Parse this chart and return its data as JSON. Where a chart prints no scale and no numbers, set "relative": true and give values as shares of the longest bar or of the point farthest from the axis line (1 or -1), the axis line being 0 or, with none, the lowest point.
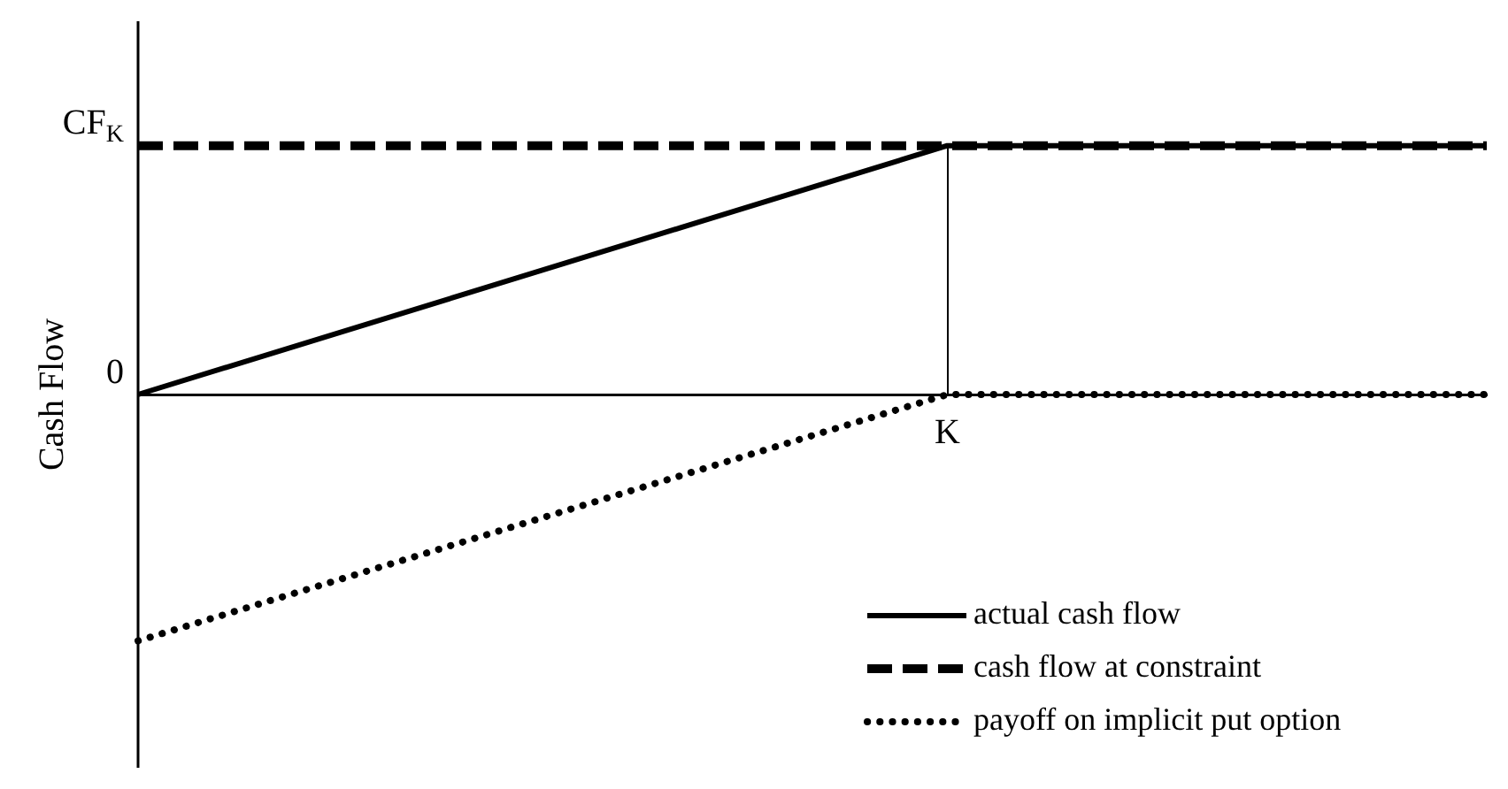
{
  "chart_data": {
    "type": "line",
    "ylabel": "Cash Flow",
    "categories": [
      null,
      null,
      null,
      null,
      null,
      null
    ],
    "relative": true,
    "annotations": [
      "0",
      "CF$_{K}$",
      "K"
    ],
    "grid": false,
    "legend": "bottom right",
    "marker": "none",
    "series": [
      {
        "name": "actual cash flow",
        "color": "#000000",
        "line_style": "solid",
        "values": [
          0,
          null,
          null,
          1,
          null,
          1
        ]
      },
      {
        "name": "cash flow at constraint",
        "color": "#000000",
        "line_style": "dashed",
        "values": [
          1,
          null,
          null,
          null,
          null,
          1
        ]
      },
      {
        "name": "payoff on implicit put option",
        "color": "#000000",
        "line_style": "dotted",
        "values": [
          -0.99,
          null,
          null,
          0,
          null,
          0
        ]
      }
    ]
  }
}
